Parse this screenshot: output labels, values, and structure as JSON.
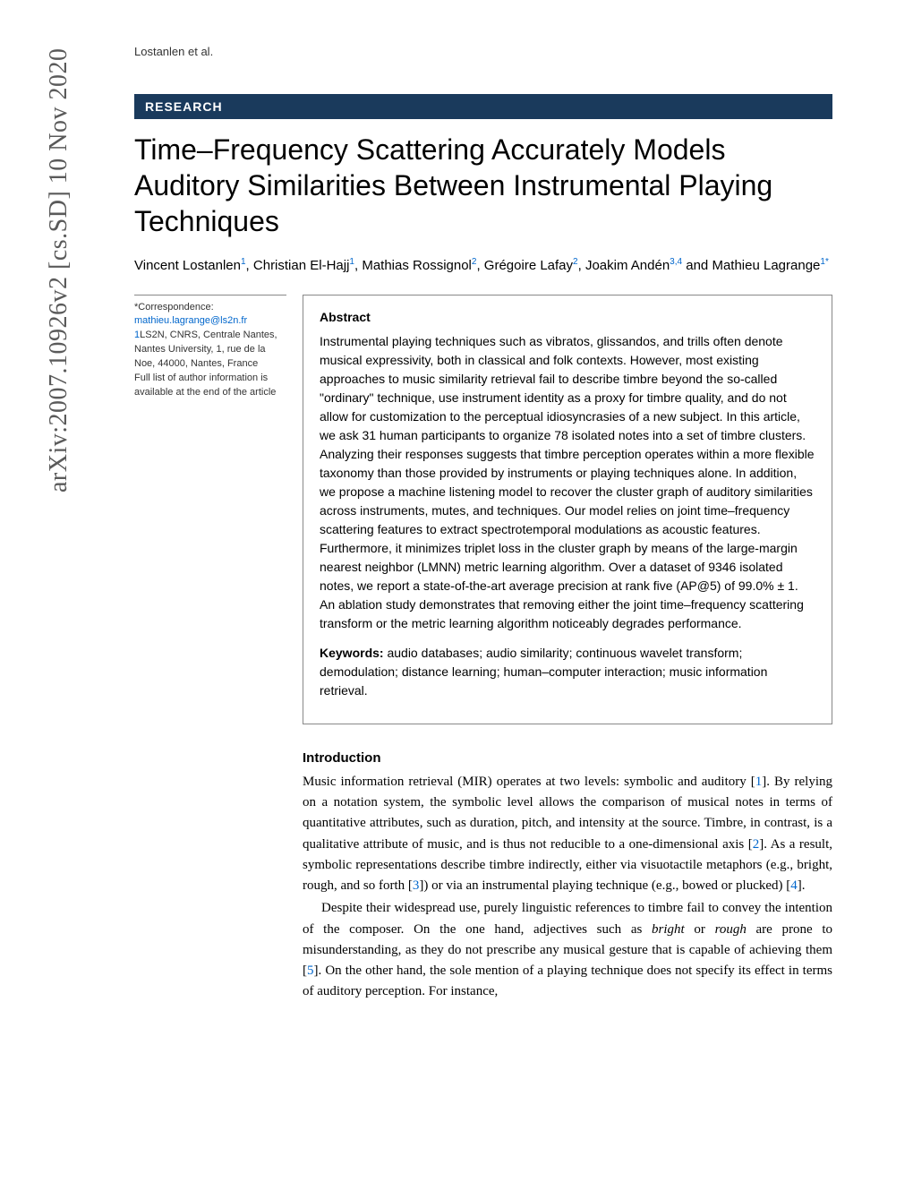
{
  "running_head": "Lostanlen et al.",
  "arxiv": "arXiv:2007.10926v2  [cs.SD]  10 Nov 2020",
  "badge": "RESEARCH",
  "title": "Time–Frequency Scattering Accurately Models Auditory Similarities Between Instrumental Playing Techniques",
  "authors": {
    "a1": {
      "name": "Vincent Lostanlen",
      "sup": "1"
    },
    "a2": {
      "name": "Christian El-Hajj",
      "sup": "1"
    },
    "a3": {
      "name": "Mathias Rossignol",
      "sup": "2"
    },
    "a4": {
      "name": "Grégoire Lafay",
      "sup": "2"
    },
    "a5": {
      "name": "Joakim Andén",
      "sup": "3,4"
    },
    "a6": {
      "name": "Mathieu Lagrange",
      "sup": "1*"
    },
    "and": " and "
  },
  "sidebar": {
    "corr_label": "*Correspondence:",
    "corr_email": "mathieu.lagrange@ls2n.fr",
    "aff1_num": "1",
    "aff1": "LS2N, CNRS, Centrale Nantes, Nantes University, 1, rue de la Noe, 44000, Nantes, France",
    "full_list": "Full list of author information is available at the end of the article"
  },
  "abstract": {
    "heading": "Abstract",
    "body": "Instrumental playing techniques such as vibratos, glissandos, and trills often denote musical expressivity, both in classical and folk contexts. However, most existing approaches to music similarity retrieval fail to describe timbre beyond the so-called \"ordinary\" technique, use instrument identity as a proxy for timbre quality, and do not allow for customization to the perceptual idiosyncrasies of a new subject. In this article, we ask 31 human participants to organize 78 isolated notes into a set of timbre clusters. Analyzing their responses suggests that timbre perception operates within a more flexible taxonomy than those provided by instruments or playing techniques alone. In addition, we propose a machine listening model to recover the cluster graph of auditory similarities across instruments, mutes, and techniques. Our model relies on joint time–frequency scattering features to extract spectrotemporal modulations as acoustic features. Furthermore, it minimizes triplet loss in the cluster graph by means of the large-margin nearest neighbor (LMNN) metric learning algorithm. Over a dataset of 9346 isolated notes, we report a state-of-the-art average precision at rank five (AP@5) of 99.0% ± 1. An ablation study demonstrates that removing either the joint time–frequency scattering transform or the metric learning algorithm noticeably degrades performance.",
    "keywords_label": "Keywords:",
    "keywords": " audio databases; audio similarity; continuous wavelet transform; demodulation; distance learning; human–computer interaction; music information retrieval."
  },
  "intro": {
    "heading": "Introduction",
    "p1a": "Music information retrieval (MIR) operates at two levels: symbolic and auditory [",
    "p1_cite1": "1",
    "p1b": "]. By relying on a notation system, the symbolic level allows the comparison of musical notes in terms of quantitative attributes, such as duration, pitch, and intensity at the source. Timbre, in contrast, is a qualitative attribute of music, and is thus not reducible to a one-dimensional axis [",
    "p1_cite2": "2",
    "p1c": "]. As a result, symbolic representations describe timbre indirectly, either via visuotactile metaphors (e.g., bright, rough, and so forth [",
    "p1_cite3": "3",
    "p1d": "]) or via an instrumental playing technique (e.g., bowed or plucked) [",
    "p1_cite4": "4",
    "p1e": "].",
    "p2a": "Despite their widespread use, purely linguistic references to timbre fail to convey the intention of the composer. On the one hand, adjectives such as ",
    "p2_i1": "bright",
    "p2b": " or ",
    "p2_i2": "rough",
    "p2c": " are prone to misunderstanding, as they do not prescribe any musical gesture that is capable of achieving them [",
    "p2_cite5": "5",
    "p2d": "]. On the other hand, the sole mention of a playing technique does not specify its effect in terms of auditory perception. For instance,"
  },
  "colors": {
    "badge_bg": "#1a3a5c",
    "link": "#0066cc",
    "arxiv_color": "#5a5a5a"
  }
}
